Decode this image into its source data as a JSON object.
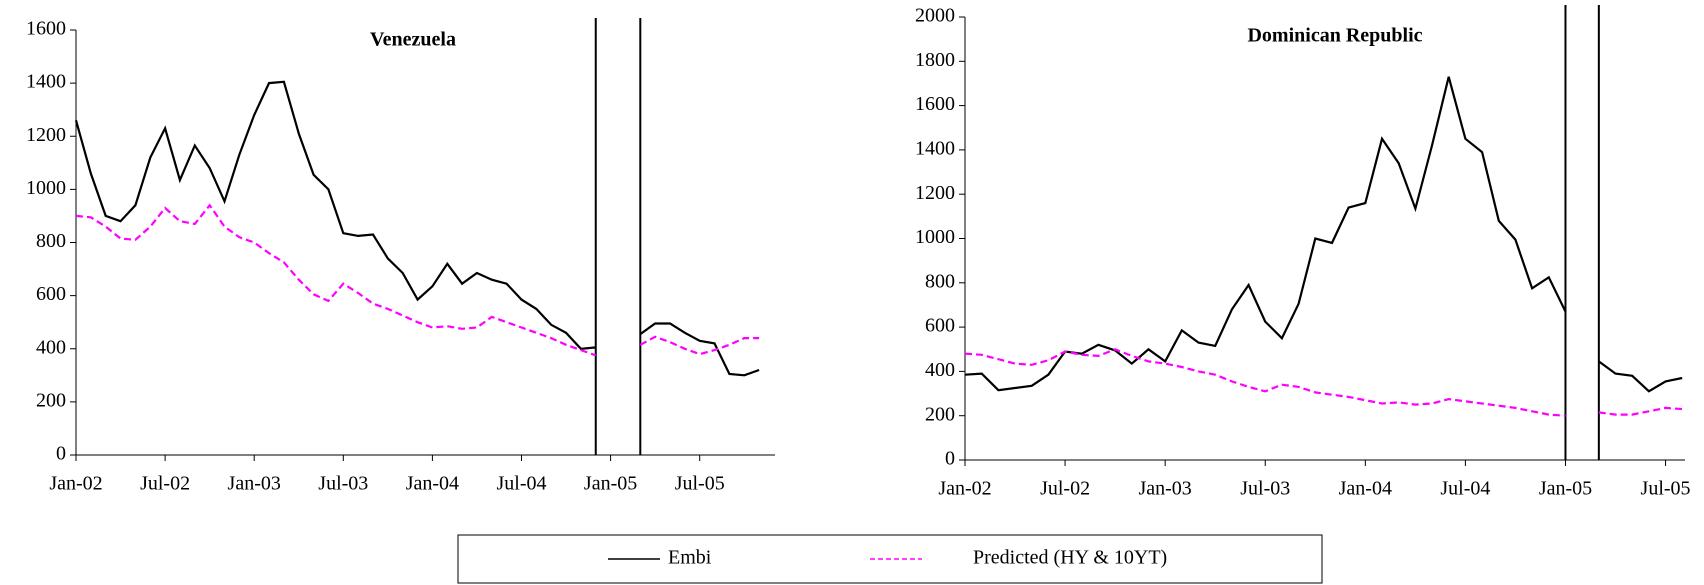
{
  "chart_data": [
    {
      "type": "line",
      "title": "Venezuela",
      "x": [
        "Jan-02",
        "Feb-02",
        "Mar-02",
        "Apr-02",
        "May-02",
        "Jun-02",
        "Jul-02",
        "Aug-02",
        "Sep-02",
        "Oct-02",
        "Nov-02",
        "Dec-02",
        "Jan-03",
        "Feb-03",
        "Mar-03",
        "Apr-03",
        "May-03",
        "Jun-03",
        "Jul-03",
        "Aug-03",
        "Sep-03",
        "Oct-03",
        "Nov-03",
        "Dec-03",
        "Jan-04",
        "Feb-04",
        "Mar-04",
        "Apr-04",
        "May-04",
        "Jun-04",
        "Jul-04",
        "Aug-04",
        "Sep-04",
        "Oct-04",
        "Nov-04",
        "Dec-04",
        "Jan-05",
        "Feb-05",
        "Mar-05",
        "Apr-05",
        "May-05",
        "Jun-05",
        "Jul-05",
        "Aug-05",
        "Sep-05",
        "Oct-05",
        "Nov-05"
      ],
      "xticks": [
        "Jan-02",
        "Jul-02",
        "Jan-03",
        "Jul-03",
        "Jan-04",
        "Jul-04",
        "Jan-05",
        "Jul-05"
      ],
      "vlines": [
        "Dec-04",
        "Mar-05"
      ],
      "ylim": [
        0,
        1600
      ],
      "yticks": [
        0,
        200,
        400,
        600,
        800,
        1000,
        1200,
        1400,
        1600
      ],
      "series": [
        {
          "name": "Embi",
          "color": "#000000",
          "style": "solid",
          "values": [
            1260,
            1060,
            900,
            880,
            940,
            1120,
            1230,
            1035,
            1165,
            1080,
            955,
            1130,
            1280,
            1400,
            1405,
            1210,
            1055,
            1000,
            835,
            825,
            830,
            740,
            685,
            585,
            635,
            720,
            645,
            685,
            660,
            645,
            585,
            550,
            490,
            460,
            400,
            405,
            null,
            null,
            455,
            495,
            495,
            460,
            430,
            420,
            305,
            300,
            320
          ]
        },
        {
          "name": "Predicted (HY & 10YT)",
          "color": "#ff00ff",
          "style": "dashed",
          "values": [
            900,
            895,
            860,
            815,
            810,
            860,
            930,
            880,
            870,
            940,
            860,
            820,
            800,
            760,
            725,
            660,
            605,
            580,
            645,
            610,
            570,
            550,
            525,
            500,
            480,
            485,
            475,
            480,
            520,
            500,
            480,
            460,
            440,
            415,
            395,
            375,
            null,
            null,
            415,
            445,
            425,
            400,
            380,
            395,
            415,
            440,
            440
          ]
        }
      ]
    },
    {
      "type": "line",
      "title": "Dominican Republic",
      "x": [
        "Jan-02",
        "Feb-02",
        "Mar-02",
        "Apr-02",
        "May-02",
        "Jun-02",
        "Jul-02",
        "Aug-02",
        "Sep-02",
        "Oct-02",
        "Nov-02",
        "Dec-02",
        "Jan-03",
        "Feb-03",
        "Mar-03",
        "Apr-03",
        "May-03",
        "Jun-03",
        "Jul-03",
        "Aug-03",
        "Sep-03",
        "Oct-03",
        "Nov-03",
        "Dec-03",
        "Jan-04",
        "Feb-04",
        "Mar-04",
        "Apr-04",
        "May-04",
        "Jun-04",
        "Jul-04",
        "Aug-04",
        "Sep-04",
        "Oct-04",
        "Nov-04",
        "Dec-04",
        "Jan-05",
        "Feb-05",
        "Mar-05",
        "Apr-05",
        "May-05",
        "Jun-05",
        "Jul-05",
        "Aug-05"
      ],
      "xticks": [
        "Jan-02",
        "Jul-02",
        "Jan-03",
        "Jul-03",
        "Jan-04",
        "Jul-04",
        "Jan-05",
        "Jul-05"
      ],
      "vlines": [
        "Jan-05",
        "Mar-05"
      ],
      "ylim": [
        0,
        2000
      ],
      "yticks": [
        0,
        200,
        400,
        600,
        800,
        1000,
        1200,
        1400,
        1600,
        1800,
        2000
      ],
      "series": [
        {
          "color": "#000000",
          "style": "solid",
          "values": [
            385,
            390,
            315,
            325,
            335,
            385,
            490,
            480,
            520,
            495,
            435,
            500,
            445,
            585,
            530,
            515,
            680,
            790,
            625,
            550,
            705,
            1000,
            980,
            1140,
            1160,
            1450,
            1340,
            1135,
            1420,
            1730,
            1450,
            1390,
            1080,
            995,
            775,
            825,
            670,
            null,
            445,
            390,
            380,
            310,
            355,
            370
          ]
        },
        {
          "color": "#ff00ff",
          "style": "dashed",
          "values": [
            480,
            475,
            455,
            435,
            430,
            450,
            490,
            475,
            470,
            500,
            470,
            445,
            435,
            420,
            400,
            385,
            355,
            330,
            310,
            340,
            330,
            305,
            295,
            285,
            270,
            255,
            260,
            250,
            255,
            275,
            265,
            255,
            245,
            235,
            220,
            205,
            200,
            null,
            215,
            205,
            205,
            220,
            235,
            230
          ]
        }
      ]
    }
  ]
}
